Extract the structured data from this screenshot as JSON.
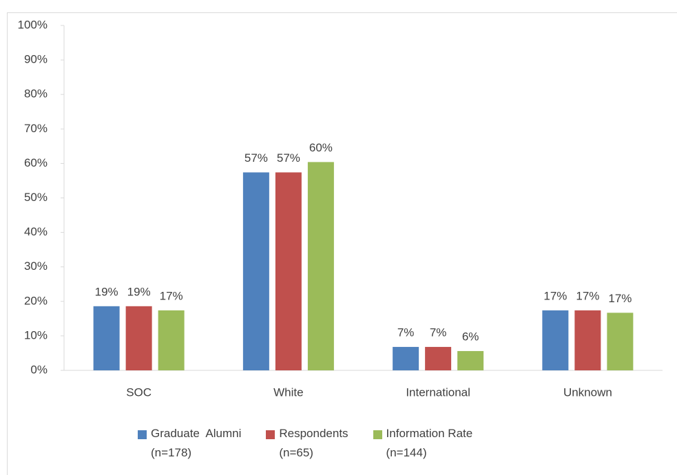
{
  "chart_data": {
    "type": "bar",
    "categories": [
      "SOC",
      "White",
      "International",
      "Unknown"
    ],
    "series": [
      {
        "name": "Graduate  Alumni\n(n=178)",
        "color": "#4f81bd",
        "values": [
          18.6,
          57.4,
          6.8,
          17.4
        ],
        "value_labels": [
          "19%",
          "57%",
          "7%",
          "17%"
        ]
      },
      {
        "name": "Respondents\n(n=65)",
        "color": "#c0504d",
        "values": [
          18.6,
          57.4,
          6.8,
          17.4
        ],
        "value_labels": [
          "19%",
          "57%",
          "7%",
          "17%"
        ]
      },
      {
        "name": "Information Rate\n(n=144)",
        "color": "#9bbb59",
        "values": [
          17.4,
          60.4,
          5.6,
          16.7
        ],
        "value_labels": [
          "17%",
          "60%",
          "6%",
          "17%"
        ]
      }
    ],
    "ylim": [
      0,
      100
    ],
    "yticks": [
      {
        "value": 0,
        "label": "0%"
      },
      {
        "value": 10,
        "label": "10%"
      },
      {
        "value": 20,
        "label": "20%"
      },
      {
        "value": 30,
        "label": "30%"
      },
      {
        "value": 40,
        "label": "40%"
      },
      {
        "value": 50,
        "label": "50%"
      },
      {
        "value": 60,
        "label": "60%"
      },
      {
        "value": 70,
        "label": "70%"
      },
      {
        "value": 80,
        "label": "80%"
      },
      {
        "value": 90,
        "label": "90%"
      },
      {
        "value": 100,
        "label": "100%"
      }
    ],
    "legend": "bottom"
  }
}
